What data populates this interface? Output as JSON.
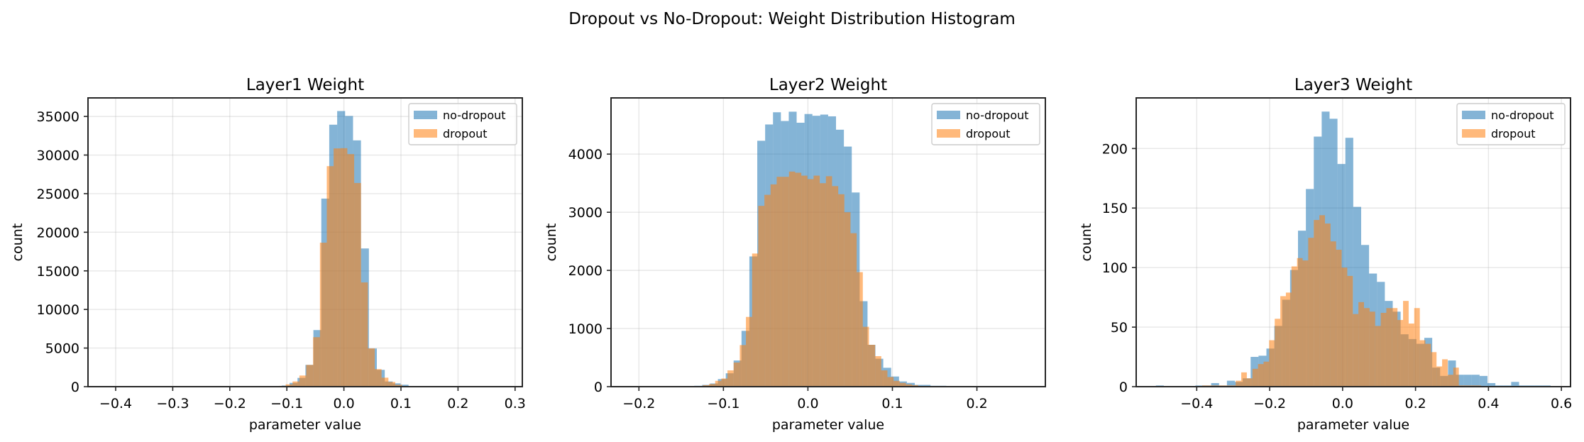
{
  "suptitle": "Dropout vs No-Dropout: Weight Distribution Histogram",
  "colors": {
    "no-dropout": "#1f77b4",
    "dropout": "#ff7f0e",
    "bar_alpha": 0.55
  },
  "chart_data": [
    {
      "type": "histogram",
      "title": "Layer1 Weight",
      "xlabel": "parameter value",
      "ylabel": "count",
      "xlim": [
        -0.4485,
        0.3127
      ],
      "ylim": [
        0,
        37400
      ],
      "grid": true,
      "legend": "top-right",
      "xticks": [
        -0.4,
        -0.3,
        -0.2,
        -0.1,
        0.0,
        0.1,
        0.2,
        0.3
      ],
      "xtick_labels": [
        "−0.4",
        "−0.3",
        "−0.2",
        "−0.1",
        "0.0",
        "0.1",
        "0.2",
        "0.3"
      ],
      "yticks": [
        0,
        5000,
        10000,
        15000,
        20000,
        25000,
        30000,
        35000
      ],
      "ytick_labels": [
        "0",
        "5000",
        "10000",
        "15000",
        "20000",
        "25000",
        "30000",
        "35000"
      ],
      "series": [
        {
          "name": "no-dropout",
          "bin_start": -0.123,
          "bin_width": 0.0139,
          "counts": [
            50,
            150,
            490,
            1135,
            2820,
            7330,
            24360,
            33930,
            35700,
            35060,
            31900,
            17900,
            4940,
            2180,
            675,
            430,
            245,
            50
          ]
        },
        {
          "name": "dropout",
          "bin_start": -0.114,
          "bin_width": 0.012,
          "counts": [
            100,
            300,
            675,
            1440,
            2820,
            6410,
            18650,
            28560,
            30860,
            30890,
            30120,
            26380,
            13500,
            4950,
            2270,
            1165,
            610,
            245,
            60
          ]
        }
      ]
    },
    {
      "type": "histogram",
      "title": "Layer2 Weight",
      "xlabel": "parameter value",
      "ylabel": "count",
      "xlim": [
        -0.233,
        0.281
      ],
      "ylim": [
        0,
        4967
      ],
      "grid": true,
      "legend": "top-right",
      "xticks": [
        -0.2,
        -0.1,
        0.0,
        0.1,
        0.2
      ],
      "xtick_labels": [
        "−0.2",
        "−0.1",
        "0.0",
        "0.1",
        "0.2"
      ],
      "yticks": [
        0,
        1000,
        2000,
        3000,
        4000
      ],
      "ytick_labels": [
        "0",
        "1000",
        "2000",
        "3000",
        "4000"
      ],
      "series": [
        {
          "name": "no-dropout",
          "bin_start": -0.1345,
          "bin_width": 0.00932,
          "counts": [
            15,
            30,
            55,
            130,
            230,
            450,
            960,
            2240,
            4230,
            4510,
            4720,
            4570,
            4730,
            4540,
            4690,
            4660,
            4680,
            4650,
            4420,
            4130,
            3340,
            1470,
            720,
            480,
            325,
            175,
            90,
            65,
            30,
            30,
            15,
            15
          ]
        },
        {
          "name": "dropout",
          "bin_start": -0.1243,
          "bin_width": 0.00728,
          "counts": [
            25,
            45,
            100,
            140,
            280,
            415,
            715,
            1200,
            2290,
            3110,
            3300,
            3480,
            3610,
            3610,
            3700,
            3680,
            3630,
            3570,
            3630,
            3500,
            3620,
            3450,
            3310,
            3000,
            2640,
            1970,
            1030,
            720,
            525,
            280,
            165,
            100,
            65,
            40,
            25
          ]
        }
      ]
    },
    {
      "type": "histogram",
      "title": "Layer3 Weight",
      "xlabel": "parameter value",
      "ylabel": "count",
      "xlim": [
        -0.566,
        0.625
      ],
      "ylim": [
        0,
        242.5
      ],
      "grid": true,
      "legend": "top-right",
      "xticks": [
        -0.4,
        -0.2,
        0.0,
        0.2,
        0.4,
        0.6
      ],
      "xtick_labels": [
        "−0.4",
        "−0.2",
        "0.0",
        "0.2",
        "0.4",
        "0.6"
      ],
      "yticks": [
        0,
        50,
        100,
        150,
        200
      ],
      "ytick_labels": [
        "0",
        "50",
        "100",
        "150",
        "200"
      ],
      "series": [
        {
          "name": "no-dropout",
          "bin_start": -0.512,
          "bin_width": 0.02165,
          "counts": [
            1,
            0,
            0,
            0,
            0,
            1,
            1,
            3,
            1,
            5,
            4,
            7,
            25,
            26,
            32,
            51,
            73,
            98,
            131,
            166,
            210,
            231,
            225,
            187,
            209,
            151,
            119,
            95,
            88,
            72,
            63,
            44,
            40,
            36,
            41,
            16,
            9,
            22,
            10,
            10,
            10,
            9,
            3,
            1,
            1,
            4,
            1,
            1,
            1,
            1
          ]
        },
        {
          "name": "dropout",
          "bin_start": -0.385,
          "bin_width": 0.0153,
          "counts": [
            1,
            1,
            1,
            1,
            1,
            1,
            5,
            12,
            7,
            15,
            19,
            21,
            39,
            57,
            76,
            79,
            101,
            108,
            106,
            125,
            140,
            144,
            137,
            122,
            115,
            100,
            93,
            61,
            71,
            66,
            63,
            51,
            62,
            66,
            66,
            56,
            72,
            53,
            66,
            39,
            36,
            29,
            17,
            23,
            10,
            16,
            1,
            1,
            1,
            1
          ]
        }
      ]
    }
  ]
}
